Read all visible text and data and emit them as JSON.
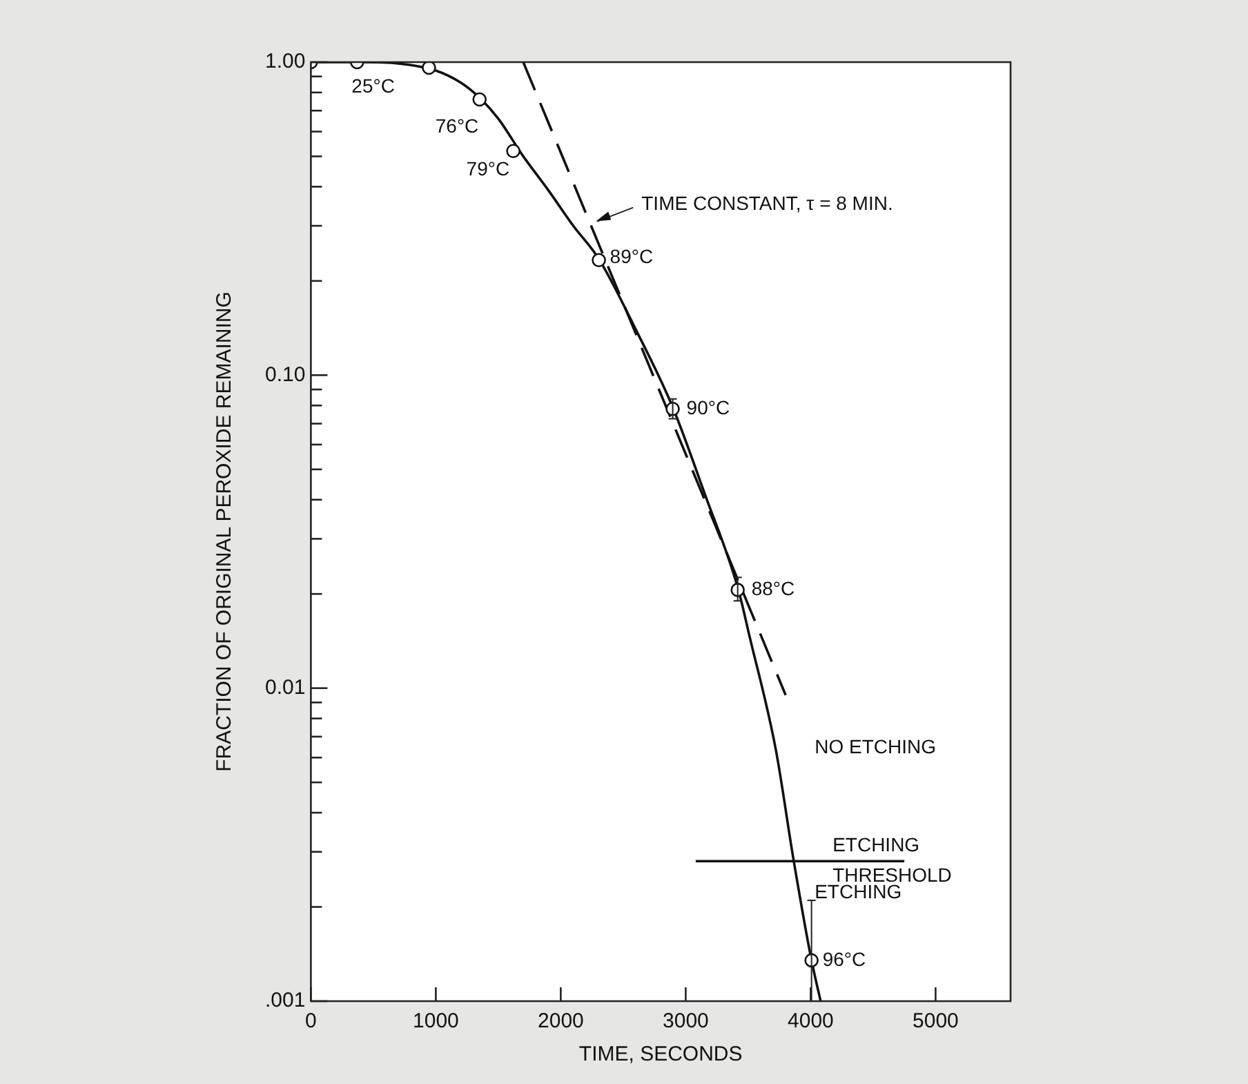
{
  "chart_data": {
    "type": "scatter",
    "xlabel": "TIME, SECONDS",
    "ylabel": "FRACTION OF ORIGINAL PEROXIDE REMAINING",
    "log": "y",
    "grid": false,
    "legend": false,
    "xlim": [
      0,
      5600
    ],
    "xticks": [
      0,
      1000,
      2000,
      3000,
      4000,
      5000
    ],
    "ylim": [
      0.001,
      1
    ],
    "yticks": [
      {
        "value": 0.001,
        "label": ".001"
      },
      {
        "value": 0.002,
        "label": null
      },
      {
        "value": 0.003,
        "label": null
      },
      {
        "value": 0.004,
        "label": null
      },
      {
        "value": 0.005,
        "label": null
      },
      {
        "value": 0.006,
        "label": null
      },
      {
        "value": 0.007,
        "label": null
      },
      {
        "value": 0.008,
        "label": null
      },
      {
        "value": 0.009,
        "label": null
      },
      {
        "value": 0.01,
        "label": "0.01"
      },
      {
        "value": 0.02,
        "label": null
      },
      {
        "value": 0.03,
        "label": null
      },
      {
        "value": 0.04,
        "label": null
      },
      {
        "value": 0.05,
        "label": null
      },
      {
        "value": 0.06,
        "label": null
      },
      {
        "value": 0.07,
        "label": null
      },
      {
        "value": 0.08,
        "label": null
      },
      {
        "value": 0.09,
        "label": null
      },
      {
        "value": 0.1,
        "label": "0.10"
      },
      {
        "value": 0.2,
        "label": null
      },
      {
        "value": 0.3,
        "label": null
      },
      {
        "value": 0.4,
        "label": null
      },
      {
        "value": 0.5,
        "label": null
      },
      {
        "value": 0.6,
        "label": null
      },
      {
        "value": 0.7,
        "label": null
      },
      {
        "value": 0.8,
        "label": null
      },
      {
        "value": 0.9,
        "label": null
      },
      {
        "value": 1,
        "label": "1.00"
      }
    ],
    "series": [
      {
        "type": "line",
        "color": "#111111",
        "marker": "none",
        "line_style": "solid",
        "x": [
          0,
          400,
          700,
          1000,
          1200,
          1350,
          1500,
          1700,
          1900,
          2100,
          2305,
          2600,
          2896,
          3150,
          3416,
          3510,
          3720,
          3865,
          4007,
          4080
        ],
        "values": [
          1,
          1,
          0.99,
          0.94,
          0.86,
          0.77,
          0.66,
          0.5,
          0.39,
          0.3,
          0.235,
          0.14,
          0.079,
          0.042,
          0.021,
          0.0147,
          0.0064,
          0.0028,
          0.00135,
          0.001
        ]
      },
      {
        "type": "line",
        "color": "#111111",
        "marker": "none",
        "line_style": "dashed",
        "x": [
          1700,
          3800
        ],
        "values": [
          1,
          0.0095
        ]
      },
      {
        "type": "line",
        "name": "ETCHING THRESHOLD",
        "color": "#111111",
        "marker": "none",
        "line_style": "solid",
        "x": [
          3080,
          4750
        ],
        "values": [
          0.0028,
          0.0028
        ]
      },
      {
        "type": "scatter",
        "color": "#111111",
        "marker": "circle",
        "x": [
          0,
          370,
          945,
          1350,
          1620,
          2305,
          2896,
          3416,
          4007
        ],
        "values": [
          1,
          1,
          0.96,
          0.76,
          0.52,
          0.233,
          0.078,
          0.0206,
          0.00135
        ],
        "errors": [
          null,
          null,
          null,
          null,
          null,
          null,
          [
            0.0726,
            0.084
          ],
          [
            0.019,
            0.0226
          ],
          [
            0.001,
            0.0021
          ]
        ]
      }
    ],
    "annotations": [
      {
        "text": "TIME CONSTANT, τ = 8 MIN.",
        "x": 2270,
        "y": 0.31
      },
      {
        "text": "25°C",
        "x": 370,
        "y": 1
      },
      {
        "text": "76°C",
        "x": 1350,
        "y": 0.76
      },
      {
        "text": "79°C",
        "x": 1620,
        "y": 0.52
      },
      {
        "text": "89°C",
        "x": 2305,
        "y": 0.233
      },
      {
        "text": "90°C",
        "x": 2896,
        "y": 0.078
      },
      {
        "text": "88°C",
        "x": 3416,
        "y": 0.0206
      },
      {
        "text": "96°C",
        "x": 4007,
        "y": 0.00135
      },
      "NO ETCHING",
      "ETCHING"
    ]
  }
}
